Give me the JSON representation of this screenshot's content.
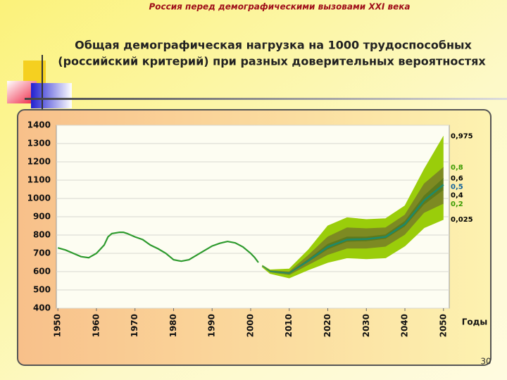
{
  "header": "Россия перед демографическими вызовами XXI века",
  "slide_number": "30",
  "chart_data": {
    "type": "fan",
    "title": [
      "Общая демографическая нагрузка на 1000 трудоспособных",
      "(российский критерий) при разных доверительных вероятностях"
    ],
    "xlabel": "Годы",
    "xlim": [
      1949.6,
      2051.5
    ],
    "xticks": [
      1950,
      1960,
      1970,
      1980,
      1990,
      2000,
      2010,
      2020,
      2030,
      2040,
      2050
    ],
    "ylim": [
      400,
      1400
    ],
    "yticks": [
      400,
      500,
      600,
      700,
      800,
      900,
      1000,
      1100,
      1200,
      1300,
      1400
    ],
    "grid": true,
    "history": {
      "color": "#2e9a2e",
      "x": [
        1950,
        1952,
        1954,
        1956,
        1958,
        1960,
        1962,
        1963,
        1964,
        1966,
        1967,
        1968,
        1970,
        1972,
        1974,
        1976,
        1978,
        1980,
        1982,
        1984,
        1986,
        1988,
        1990,
        1992,
        1994,
        1996,
        1998,
        2000,
        2001,
        2002
      ],
      "values": [
        730,
        718,
        700,
        682,
        676,
        700,
        745,
        790,
        808,
        815,
        815,
        808,
        790,
        775,
        745,
        725,
        700,
        665,
        657,
        665,
        690,
        715,
        740,
        755,
        765,
        757,
        735,
        700,
        678,
        650
      ]
    },
    "forecast_x": [
      2003,
      2005,
      2010,
      2015,
      2020,
      2025,
      2030,
      2035,
      2040,
      2045,
      2050
    ],
    "series": [
      {
        "name": "0,975",
        "label_color": "#000000",
        "fill": "#9acd0a",
        "values": [
          635,
          610,
          615,
          720,
          850,
          895,
          885,
          890,
          960,
          1160,
          1340
        ]
      },
      {
        "name": "0,8",
        "label_color": "#3a9a00",
        "fill": "#7d8a22",
        "values": [
          632,
          605,
          600,
          690,
          790,
          840,
          835,
          840,
          910,
          1080,
          1170
        ]
      },
      {
        "name": "0,6",
        "label_color": "#000000",
        "fill": "#5e7a1c",
        "values": [
          631,
          602,
          593,
          668,
          750,
          790,
          790,
          802,
          875,
          1015,
          1110
        ]
      },
      {
        "name": "0,5",
        "label_color": "#10609a",
        "color": "#1d8a6a",
        "fill": "#5e7a1c",
        "values": [
          630,
          600,
          590,
          660,
          735,
          775,
          778,
          790,
          860,
          990,
          1075
        ]
      },
      {
        "name": "0,4",
        "label_color": "#000000",
        "fill": "#7d8a22",
        "values": [
          629,
          598,
          587,
          652,
          720,
          762,
          765,
          778,
          845,
          965,
          1045
        ]
      },
      {
        "name": "0,2",
        "label_color": "#3a9a00",
        "fill": "#9acd0a",
        "values": [
          628,
          595,
          580,
          635,
          690,
          725,
          725,
          735,
          800,
          920,
          970
        ]
      },
      {
        "name": "0,025",
        "label_color": "#000000",
        "values": [
          625,
          590,
          565,
          610,
          650,
          675,
          670,
          675,
          740,
          840,
          885
        ]
      }
    ]
  }
}
